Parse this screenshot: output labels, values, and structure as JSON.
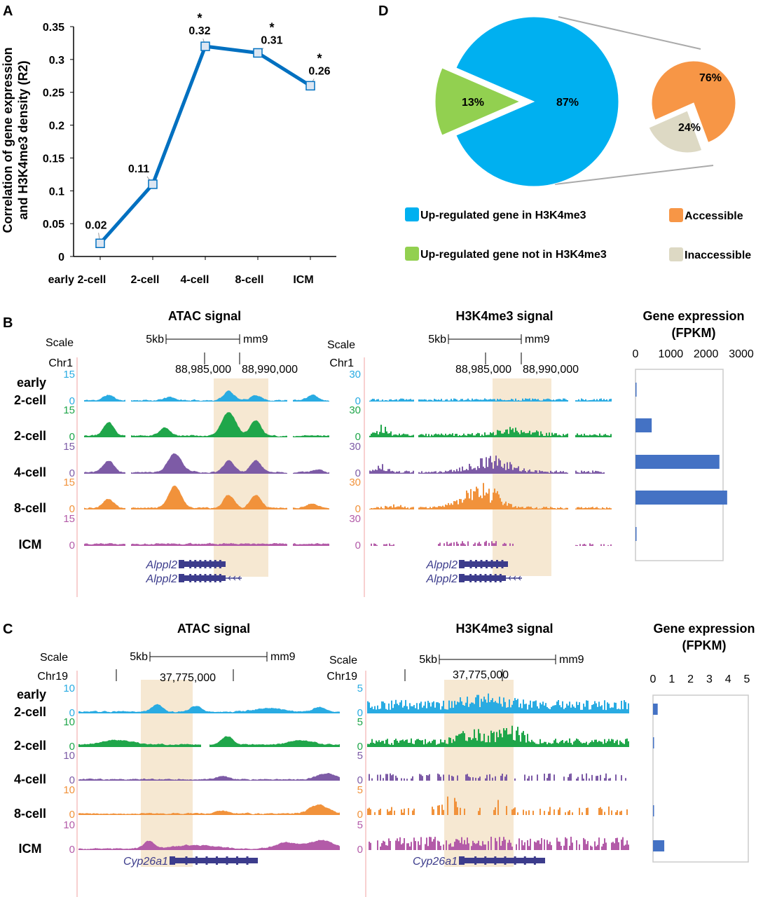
{
  "panels": {
    "A": "A",
    "B": "B",
    "C": "C",
    "D": "D"
  },
  "chart_data": [
    {
      "type": "line",
      "ylabel_lines": [
        "Correlation of gene expression",
        "and H3K4me3 density (R2)"
      ],
      "categories": [
        "early 2-cell",
        "2-cell",
        "4-cell",
        "8-cell",
        "ICM"
      ],
      "values": [
        0.02,
        0.11,
        0.32,
        0.31,
        0.26
      ],
      "value_labels": [
        "0.02",
        "0.11",
        "0.32",
        "0.31",
        "0.26"
      ],
      "significance": [
        "",
        "",
        "*",
        "*",
        "*"
      ],
      "yticks": [
        "0",
        "0.05",
        "0.1",
        "0.15",
        "0.2",
        "0.25",
        "0.3",
        "0.35"
      ],
      "ylim": [
        0,
        0.35
      ],
      "color": "#0070c0"
    },
    {
      "type": "pie",
      "slices": [
        {
          "label": "Up-regulated gene in H3K4me3",
          "value": 87,
          "text": "87%",
          "color": "#00b0f0"
        },
        {
          "label": "Up-regulated gene not in H3K4me3",
          "value": 13,
          "text": "13%",
          "color": "#92d050"
        }
      ]
    },
    {
      "type": "pie",
      "slices": [
        {
          "label": "Accessible",
          "value": 76,
          "text": "76%",
          "color": "#f79646"
        },
        {
          "label": "Inaccessible",
          "value": 24,
          "text": "24%",
          "color": "#ddd9c4"
        }
      ]
    },
    {
      "type": "bar",
      "orientation": "horizontal",
      "title_lines": [
        "Gene expression",
        "(FPKM)"
      ],
      "values": [
        20,
        460,
        2380,
        2600,
        15
      ],
      "xticks": [
        "0",
        "1000",
        "2000",
        "3000"
      ],
      "xlim": [
        0,
        3000
      ],
      "color": "#4472c4"
    },
    {
      "type": "bar",
      "orientation": "horizontal",
      "title_lines": [
        "Gene expression",
        "(FPKM)"
      ],
      "values": [
        0.25,
        0.05,
        0,
        0.04,
        0.6
      ],
      "xticks": [
        "0",
        "1",
        "2",
        "3",
        "4",
        "5"
      ],
      "xlim": [
        0,
        5
      ],
      "color": "#4472c4"
    }
  ],
  "rows": [
    [
      "early",
      "2-cell"
    ],
    [
      "2-cell"
    ],
    [
      "4-cell"
    ],
    [
      "8-cell"
    ],
    [
      "ICM"
    ]
  ],
  "track_colors": [
    "#29abe2",
    "#1fa64a",
    "#7d5ba6",
    "#f1923b",
    "#b35ba8"
  ],
  "highlight_color": "#f6e8d2",
  "browser_b": {
    "atac": {
      "title": "ATAC signal",
      "scale": "Scale",
      "kb": "5kb",
      "assembly": "mm9",
      "chr": "Chr1",
      "coords": [
        "88,985,000",
        "88,990,000"
      ],
      "max": "15",
      "min": "0",
      "genes": [
        "Alppl2",
        "Alppl2"
      ]
    },
    "h3k4me3": {
      "title": "H3K4me3 signal",
      "scale": "Scale",
      "kb": "5kb",
      "assembly": "mm9",
      "chr": "Chr1",
      "coords": [
        "88,985,000",
        "88,990,000"
      ],
      "max": "30",
      "min": "0",
      "genes": [
        "Alppl2",
        "Alppl2"
      ]
    }
  },
  "browser_c": {
    "atac": {
      "title": "ATAC signal",
      "scale": "Scale",
      "kb": "5kb",
      "assembly": "mm9",
      "chr": "Chr19",
      "coords": [
        "37,775,000"
      ],
      "max": "10",
      "min": "0",
      "genes": [
        "Cyp26a1"
      ]
    },
    "h3k4me3": {
      "title": "H3K4me3 signal",
      "scale": "Scale",
      "kb": "5kb",
      "assembly": "mm9",
      "chr": "Chr19",
      "coords": [
        "37,775,000"
      ],
      "max": "5",
      "min": "0",
      "genes": [
        "Cyp26a1"
      ]
    }
  }
}
